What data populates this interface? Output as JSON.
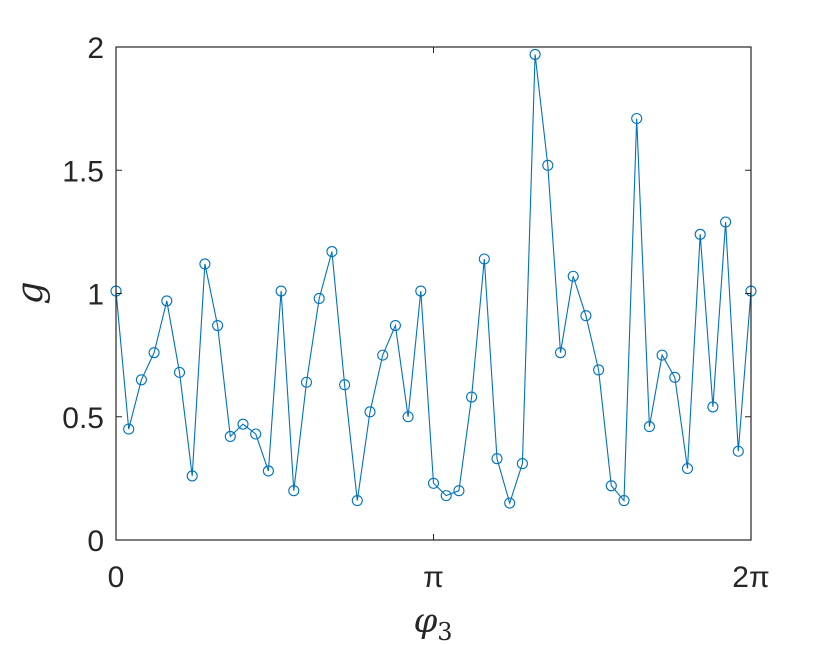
{
  "chart_data": {
    "type": "line",
    "marker": "circle",
    "line_color": "#0072BD",
    "xlabel": "φ",
    "xlabel_subscript": "3",
    "ylabel": "g",
    "xlim": [
      0,
      6.283185307
    ],
    "ylim": [
      0,
      2
    ],
    "grid": false,
    "x_ticks": [
      {
        "value": 0,
        "label": "0"
      },
      {
        "value": 3.141592654,
        "label": "π"
      },
      {
        "value": 6.283185307,
        "label": "2π"
      }
    ],
    "y_ticks": [
      {
        "value": 0,
        "label": "0"
      },
      {
        "value": 0.5,
        "label": "0.5"
      },
      {
        "value": 1,
        "label": "1"
      },
      {
        "value": 1.5,
        "label": "1.5"
      },
      {
        "value": 2,
        "label": "2"
      }
    ],
    "series": [
      {
        "x": [
          0.0,
          0.1257,
          0.2513,
          0.377,
          0.5027,
          0.6283,
          0.754,
          0.8796,
          1.0053,
          1.131,
          1.2566,
          1.3823,
          1.508,
          1.6336,
          1.7593,
          1.885,
          2.0106,
          2.1363,
          2.2619,
          2.3876,
          2.5133,
          2.6389,
          2.7646,
          2.8903,
          3.0159,
          3.1416,
          3.2673,
          3.3929,
          3.5186,
          3.6442,
          3.7699,
          3.8956,
          4.0212,
          4.1469,
          4.2726,
          4.3982,
          4.5239,
          4.6496,
          4.7752,
          4.9009,
          5.0265,
          5.1522,
          5.2779,
          5.4035,
          5.5292,
          5.6549,
          5.7805,
          5.9062,
          6.0319,
          6.1575,
          6.2832
        ],
        "y": [
          1.01,
          0.45,
          0.65,
          0.76,
          0.97,
          0.68,
          0.26,
          1.12,
          0.87,
          0.42,
          0.47,
          0.43,
          0.28,
          1.01,
          0.2,
          0.64,
          0.98,
          1.17,
          0.63,
          0.16,
          0.52,
          0.75,
          0.87,
          0.5,
          1.01,
          0.23,
          0.18,
          0.2,
          0.58,
          1.14,
          0.33,
          0.15,
          0.31,
          1.97,
          1.52,
          0.76,
          1.07,
          0.91,
          0.69,
          0.22,
          0.16,
          1.71,
          0.46,
          0.75,
          0.66,
          0.29,
          1.24,
          0.54,
          1.29,
          0.36,
          1.01
        ]
      }
    ]
  }
}
